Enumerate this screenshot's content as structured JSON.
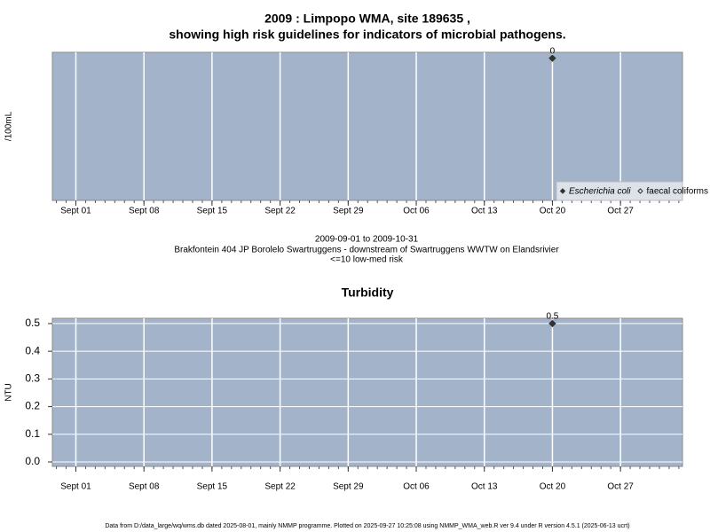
{
  "chart_data": [
    {
      "type": "scatter",
      "title": [
        "2009 : Limpopo WMA, site 189635 ,",
        "showing high risk guidelines for indicators of microbial pathogens."
      ],
      "y_label": "/100mL",
      "x": [
        "2009-10-20"
      ],
      "series": [
        {
          "name": "Escherichia coli",
          "color": "#333333",
          "marker": "filled",
          "values": [
            0
          ]
        },
        {
          "name": "faecal coliforms",
          "color": "#333333",
          "marker": "open",
          "values": [
            null
          ]
        }
      ],
      "xlim": [
        "2009-08-29T14:00",
        "2009-11-02T09:00"
      ],
      "xticks": [
        {
          "value": "2009-09-01",
          "label": "Sept 01"
        },
        {
          "value": "2009-09-08",
          "label": "Sept 08"
        },
        {
          "value": "2009-09-15",
          "label": "Sept 15"
        },
        {
          "value": "2009-09-22",
          "label": "Sept 22"
        },
        {
          "value": "2009-09-29",
          "label": "Sept 29"
        },
        {
          "value": "2009-10-06",
          "label": "Oct 06"
        },
        {
          "value": "2009-10-13",
          "label": "Oct 13"
        },
        {
          "value": "2009-10-20",
          "label": "Oct 20"
        },
        {
          "value": "2009-10-27",
          "label": "Oct 27"
        }
      ],
      "ylim": [
        -24,
        1
      ],
      "yticks": [],
      "grid": "x",
      "legend": "bottom-right",
      "background": "#a3b4ca"
    },
    {
      "type": "scatter",
      "title": [
        "Turbidity"
      ],
      "y_label": "NTU",
      "x": [
        "2009-10-20"
      ],
      "series": [
        {
          "color": "#333333",
          "marker": "filled",
          "values": [
            0.5
          ]
        }
      ],
      "xlim": [
        "2009-08-29T14:00",
        "2009-11-02T09:00"
      ],
      "xticks": [
        {
          "value": "2009-09-01",
          "label": "Sept 01"
        },
        {
          "value": "2009-09-08",
          "label": "Sept 08"
        },
        {
          "value": "2009-09-15",
          "label": "Sept 15"
        },
        {
          "value": "2009-09-22",
          "label": "Sept 22"
        },
        {
          "value": "2009-09-29",
          "label": "Sept 29"
        },
        {
          "value": "2009-10-06",
          "label": "Oct 06"
        },
        {
          "value": "2009-10-13",
          "label": "Oct 13"
        },
        {
          "value": "2009-10-20",
          "label": "Oct 20"
        },
        {
          "value": "2009-10-27",
          "label": "Oct 27"
        }
      ],
      "ylim": [
        -0.016,
        0.519
      ],
      "yticks": [
        {
          "value": 0,
          "label": "0.0"
        },
        0.1,
        0.2,
        0.3,
        0.4,
        0.5
      ],
      "grid": "xy",
      "background": "#a3b4ca"
    }
  ],
  "captions": [
    "2009-09-01 to 2009-10-31",
    "Brakfontein 404 JP Borolelo Swartruggens - downstream of Swartruggens WWTW on Elandsrivier",
    "<=10 low-med risk"
  ],
  "footer": "Data from D:/data_large/wq/wms.db dated 2025-08-01, mainly NMMP programme. Plotted on 2025-09-27 10:25:08 using NMMP_WMA_web.R ver 9.4 under R version 4.5.1 (2025-06-13 ucrt)"
}
